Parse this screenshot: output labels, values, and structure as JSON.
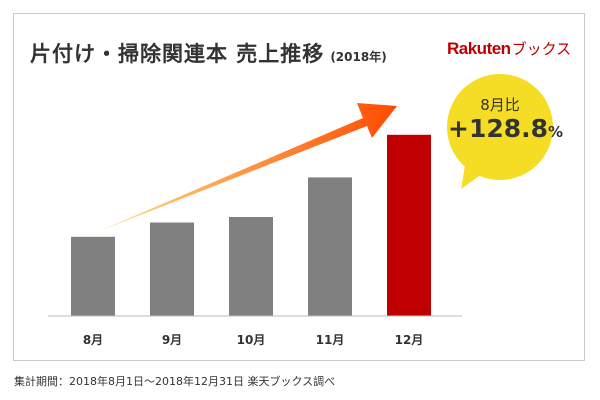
{
  "title": "片付け・掃除関連本 売上推移",
  "title_year": "(2018年)",
  "brand": {
    "name": "Rakuten",
    "suffix": "ブックス",
    "color": "#bf0000"
  },
  "callout": {
    "label": "8月比",
    "sign": "+",
    "value": "128.8",
    "unit": "%",
    "color": "#f5dd25"
  },
  "footnote": "集計期間：2018年8月1日～2018年12月31日 楽天ブックス調べ",
  "colors": {
    "bar": "#808080",
    "highlight": "#c00000",
    "arrow_start": "#fde38a",
    "arrow_end": "#ff4a00"
  },
  "chart_data": {
    "type": "bar",
    "categories": [
      "8月",
      "9月",
      "10月",
      "11月",
      "12月"
    ],
    "values": [
      100,
      118,
      125,
      175,
      228.8
    ],
    "highlight_index": 4,
    "ylim": [
      0,
      250
    ],
    "grid": false,
    "xlabel": "",
    "ylabel": ""
  }
}
